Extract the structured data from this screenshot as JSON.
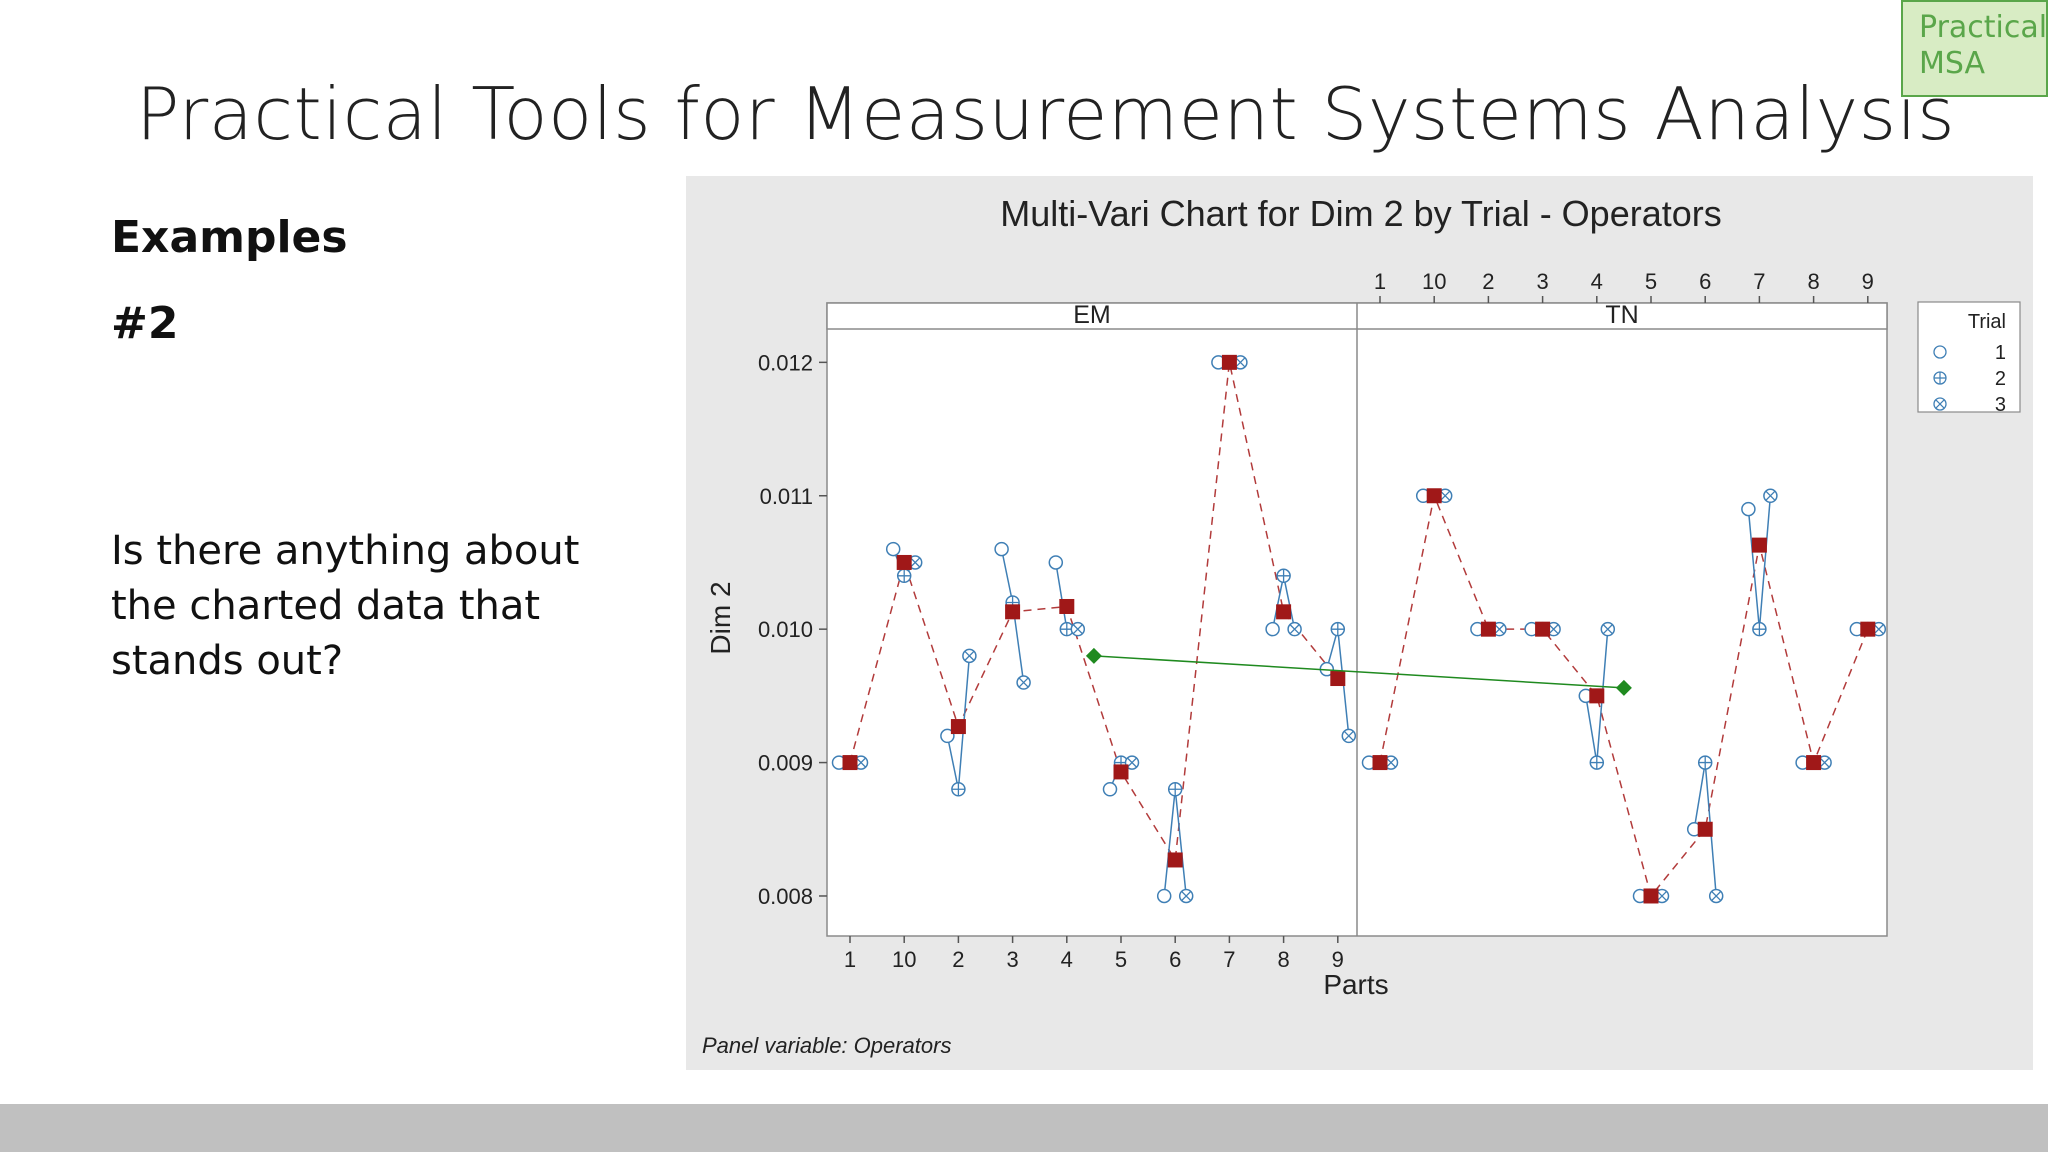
{
  "slide": {
    "title": "Practical Tools for Measurement Systems Analysis",
    "logo_line1": "Practical",
    "logo_line2": "MSA",
    "heading": "Examples",
    "subheading": "#2",
    "question": "Is there anything about the charted data that stands out?"
  },
  "colors": {
    "raw_line": "#3f7fb5",
    "mean_marker": "#a01818",
    "mean_line": "#b23b3b",
    "operator_mean": "#1f8a1f",
    "logo_green": "#5aa64a"
  },
  "chart_data": {
    "type": "multi-vari",
    "title": "Multi-Vari Chart for Dim 2 by Trial - Operators",
    "xlabel": "Parts",
    "ylabel": "Dim 2",
    "footnote": "Panel variable: Operators",
    "ylim": [
      0.0077,
      0.01225
    ],
    "yticks": [
      "0.008",
      "0.009",
      "0.010",
      "0.011",
      "0.012"
    ],
    "parts": [
      "1",
      "10",
      "2",
      "3",
      "4",
      "5",
      "6",
      "7",
      "8",
      "9"
    ],
    "legend_title": "Trial",
    "legend_items": [
      "1",
      "2",
      "3"
    ],
    "legend_position": "right",
    "panels": [
      {
        "name": "EM",
        "trials": [
          [
            0.009,
            0.0106,
            0.0092,
            0.0106,
            0.0105,
            0.0088,
            0.008,
            0.012,
            0.01,
            0.0097
          ],
          [
            0.009,
            0.0104,
            0.0088,
            0.0102,
            0.01,
            0.009,
            0.0088,
            0.012,
            0.0104,
            0.01
          ],
          [
            0.009,
            0.0105,
            0.0098,
            0.0096,
            0.01,
            0.009,
            0.008,
            0.012,
            0.01,
            0.0092
          ]
        ],
        "means": [
          0.009,
          0.0105,
          0.00927,
          0.01013,
          0.01017,
          0.00893,
          0.00827,
          0.012,
          0.01013,
          0.00963
        ],
        "operator_mean": 0.0098
      },
      {
        "name": "TN",
        "trials": [
          [
            0.009,
            0.011,
            0.01,
            0.01,
            0.0095,
            0.008,
            0.0085,
            0.0109,
            0.009,
            0.01
          ],
          [
            0.009,
            0.011,
            0.01,
            0.01,
            0.009,
            0.008,
            0.009,
            0.01,
            0.009,
            0.01
          ],
          [
            0.009,
            0.011,
            0.01,
            0.01,
            0.01,
            0.008,
            0.008,
            0.011,
            0.009,
            0.01
          ]
        ],
        "means": [
          0.009,
          0.011,
          0.01,
          0.01,
          0.0095,
          0.008,
          0.0085,
          0.01063,
          0.009,
          0.01
        ],
        "operator_mean": 0.00956
      }
    ]
  }
}
